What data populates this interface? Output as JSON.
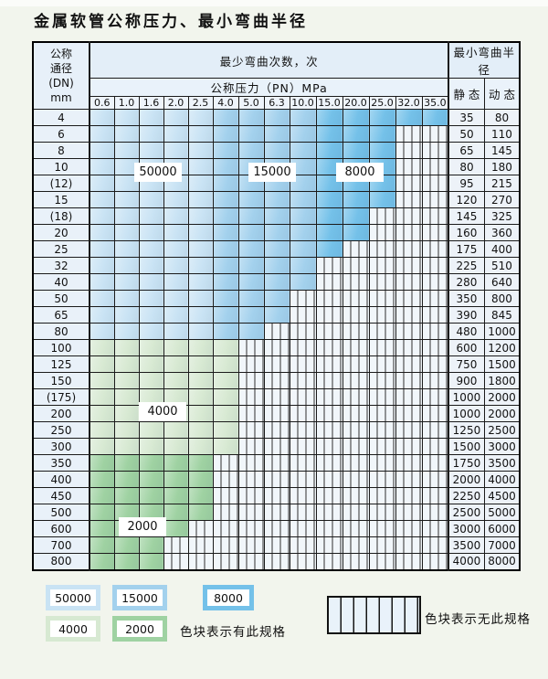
{
  "title": "金属软管公称压力、最小弯曲半径",
  "table": {
    "corner_lines": [
      "公称",
      "通径",
      "(DN)",
      "mm"
    ],
    "bend_times_header": "最少弯曲次数，次",
    "radius_header": "最小弯曲半径",
    "pressure_header": "公称压力（PN）MPa",
    "static_label": "静 态",
    "dynamic_label": "动 态",
    "pressure_columns": [
      "0.6",
      "1.0",
      "1.6",
      "2.0",
      "2.5",
      "4.0",
      "5.0",
      "6.3",
      "10.0",
      "15.0",
      "20.0",
      "25.0",
      "32.0",
      "35.0"
    ],
    "rows": [
      {
        "dn": "4",
        "colored": 14,
        "group": "blue",
        "static": "35",
        "dynamic": "80"
      },
      {
        "dn": "6",
        "colored": 12,
        "group": "blue",
        "static": "50",
        "dynamic": "110"
      },
      {
        "dn": "8",
        "colored": 12,
        "group": "blue",
        "static": "65",
        "dynamic": "145"
      },
      {
        "dn": "10",
        "colored": 12,
        "group": "blue",
        "static": "80",
        "dynamic": "180"
      },
      {
        "dn": "(12)",
        "colored": 12,
        "group": "blue",
        "static": "95",
        "dynamic": "215"
      },
      {
        "dn": "15",
        "colored": 12,
        "group": "blue",
        "static": "120",
        "dynamic": "270"
      },
      {
        "dn": "(18)",
        "colored": 11,
        "group": "blue",
        "static": "145",
        "dynamic": "325"
      },
      {
        "dn": "20",
        "colored": 11,
        "group": "blue",
        "static": "160",
        "dynamic": "360"
      },
      {
        "dn": "25",
        "colored": 10,
        "group": "blue",
        "static": "175",
        "dynamic": "400"
      },
      {
        "dn": "32",
        "colored": 9,
        "group": "blue",
        "static": "225",
        "dynamic": "510"
      },
      {
        "dn": "40",
        "colored": 9,
        "group": "blue",
        "static": "280",
        "dynamic": "640"
      },
      {
        "dn": "50",
        "colored": 8,
        "group": "blue",
        "static": "350",
        "dynamic": "800"
      },
      {
        "dn": "65",
        "colored": 8,
        "group": "blue",
        "static": "390",
        "dynamic": "845"
      },
      {
        "dn": "80",
        "colored": 7,
        "group": "blue",
        "static": "480",
        "dynamic": "1000"
      },
      {
        "dn": "100",
        "colored": 6,
        "group": "g4000",
        "static": "600",
        "dynamic": "1200"
      },
      {
        "dn": "125",
        "colored": 6,
        "group": "g4000",
        "static": "750",
        "dynamic": "1500"
      },
      {
        "dn": "150",
        "colored": 6,
        "group": "g4000",
        "static": "900",
        "dynamic": "1800"
      },
      {
        "dn": "(175)",
        "colored": 6,
        "group": "g4000",
        "static": "1000",
        "dynamic": "2000"
      },
      {
        "dn": "200",
        "colored": 6,
        "group": "g4000",
        "static": "1000",
        "dynamic": "2000"
      },
      {
        "dn": "250",
        "colored": 6,
        "group": "g4000",
        "static": "1250",
        "dynamic": "2500"
      },
      {
        "dn": "300",
        "colored": 6,
        "group": "g4000",
        "static": "1500",
        "dynamic": "3000"
      },
      {
        "dn": "350",
        "colored": 5,
        "group": "g2000",
        "static": "1750",
        "dynamic": "3500"
      },
      {
        "dn": "400",
        "colored": 5,
        "group": "g2000",
        "static": "2000",
        "dynamic": "4000"
      },
      {
        "dn": "450",
        "colored": 5,
        "group": "g2000",
        "static": "2250",
        "dynamic": "4500"
      },
      {
        "dn": "500",
        "colored": 5,
        "group": "g2000",
        "static": "2500",
        "dynamic": "5000"
      },
      {
        "dn": "600",
        "colored": 4,
        "group": "g2000",
        "static": "3000",
        "dynamic": "6000"
      },
      {
        "dn": "700",
        "colored": 3,
        "group": "g2000",
        "static": "3500",
        "dynamic": "7000"
      },
      {
        "dn": "800",
        "colored": 3,
        "group": "g2000",
        "static": "4000",
        "dynamic": "8000"
      }
    ]
  },
  "bands": {
    "b50000": {
      "label": "50000",
      "color": "#c9e3f4"
    },
    "b15000": {
      "label": "15000",
      "color": "#a3d1ed"
    },
    "b8000": {
      "label": "8000",
      "color": "#74c1e9"
    },
    "g4000": {
      "label": "4000",
      "color": "#d7e9d2"
    },
    "g2000": {
      "label": "2000",
      "color": "#9fd2a2"
    }
  },
  "legend": {
    "has_spec_text": "色块表示有此规格",
    "no_spec_text": "色块表示无此规格",
    "items": [
      {
        "label": "50000",
        "band": "b50000"
      },
      {
        "label": "15000",
        "band": "b15000"
      },
      {
        "label": "8000",
        "band": "b8000"
      },
      {
        "label": "4000",
        "band": "g4000"
      },
      {
        "label": "2000",
        "band": "g2000"
      }
    ]
  },
  "chart_data": {
    "type": "table",
    "title": "金属软管公称压力、最小弯曲半径",
    "note": "colored cell = spec exists (value = min bend cycles band), hatched cell = no spec",
    "pressure_bands_blue_rows": {
      "50000": "PN 0.6-2.5",
      "15000": "PN 4.0-10.0",
      "8000": "PN 15.0-35.0"
    },
    "row_bands_green_rows": {
      "4000": "DN 100-300",
      "2000": "DN 350-800"
    }
  }
}
